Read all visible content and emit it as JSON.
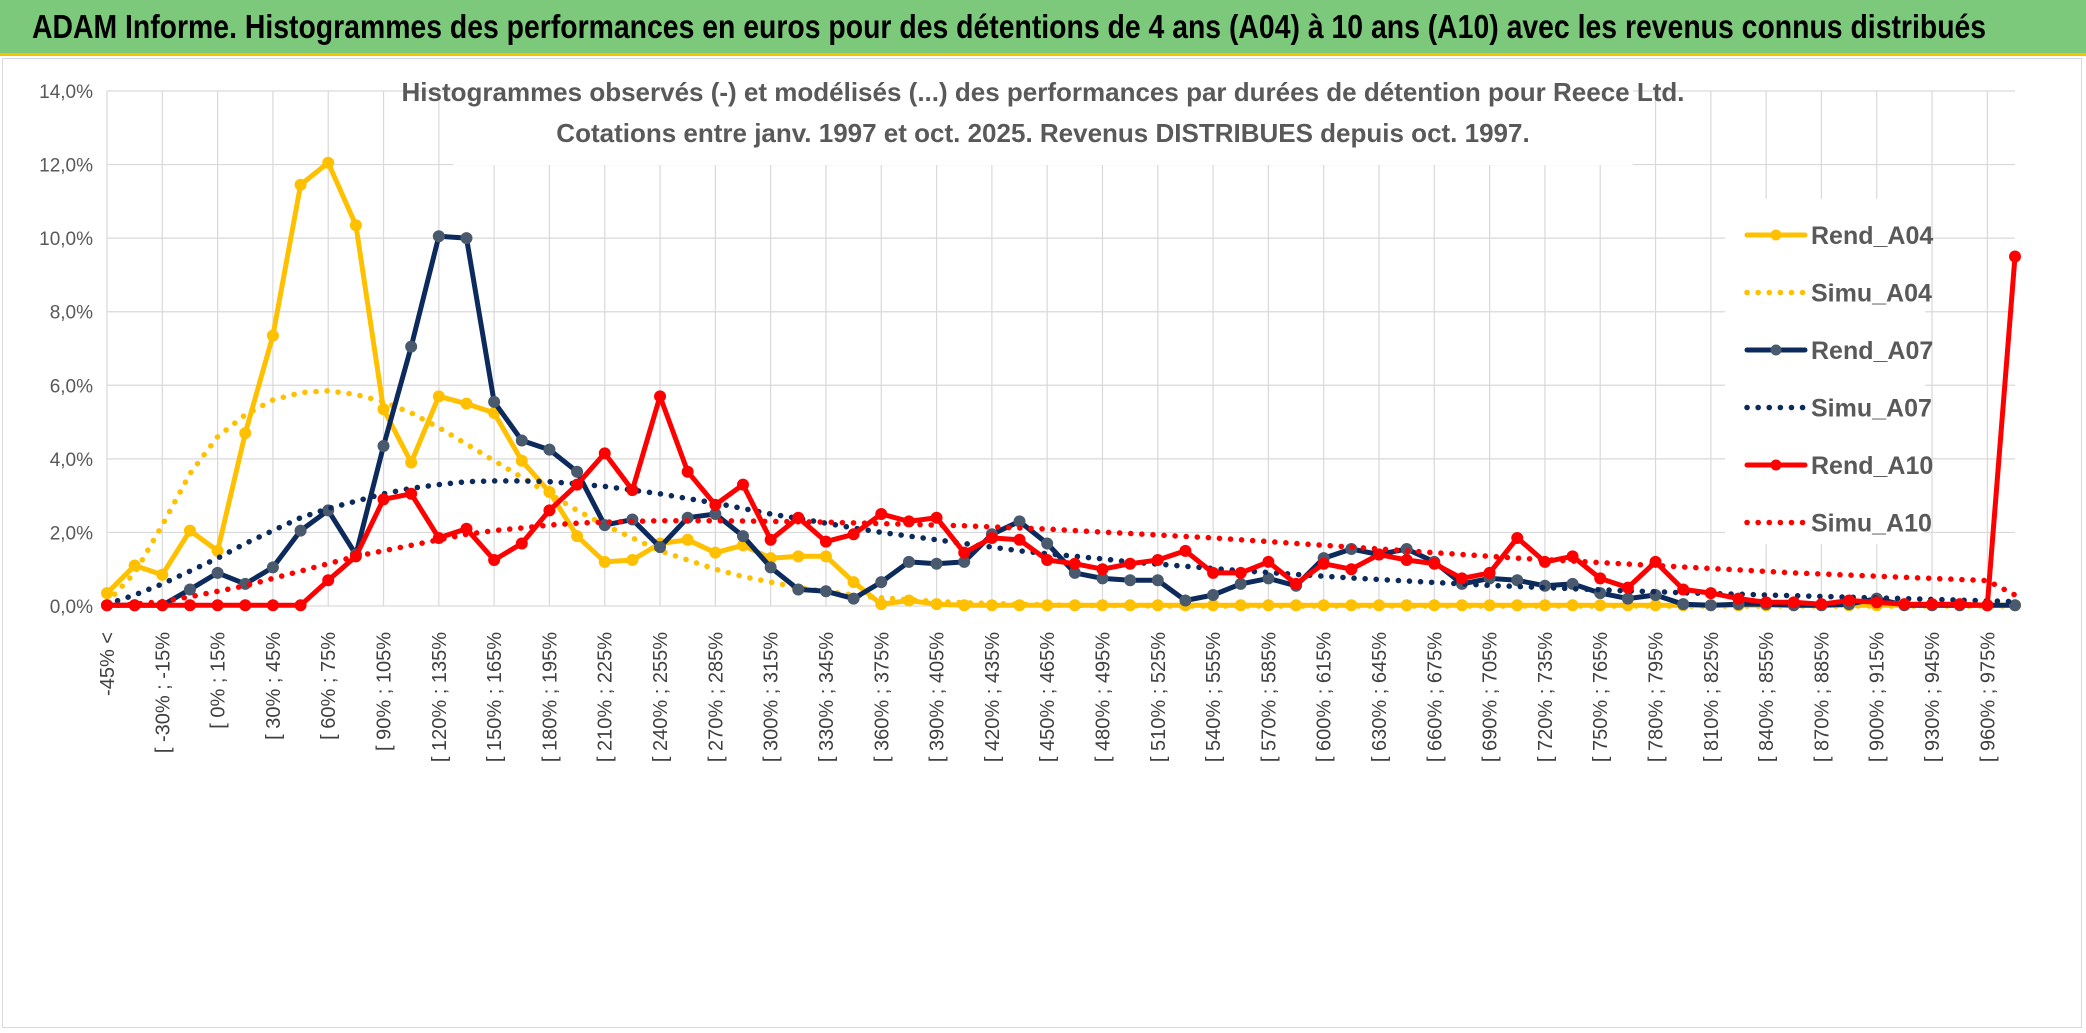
{
  "banner": {
    "title": "ADAM Informe. Histogrammes des performances en euros pour des détentions de 4 ans (A04) à 10 ans (A10) avec les revenus connus distribués"
  },
  "colors": {
    "banner_bg": "#7dc97c",
    "A04": "#ffc000",
    "A07": "#0d2a5c",
    "A07_marker": "#4a5a6e",
    "A10": "#ff0000",
    "grid": "#d9d9d9"
  },
  "chart_data": {
    "type": "line",
    "title": "Histogrammes observés (-) et modélisés (...) des performances par durées de détention pour Reece Ltd.",
    "subtitle": "Cotations entre janv. 1997 et oct. 2025. Revenus DISTRIBUES depuis oct. 1997.",
    "xlabel": "",
    "ylabel": "",
    "ylim": [
      0,
      14
    ],
    "yticks": [
      "0,0%",
      "2,0%",
      "4,0%",
      "6,0%",
      "8,0%",
      "10,0%",
      "12,0%",
      "14,0%"
    ],
    "grid": true,
    "legend_position": "right",
    "x_labels": [
      "-45% <",
      "[ -30% ; -15%",
      "[ 0% ; 15%",
      "[ 30% ; 45%",
      "[ 60% ; 75%",
      "[ 90% ; 105%",
      "[ 120% ; 135%",
      "[ 150% ; 165%",
      "[ 180% ; 195%",
      "[ 210% ; 225%",
      "[ 240% ; 255%",
      "[ 270% ; 285%",
      "[ 300% ; 315%",
      "[ 330% ; 345%",
      "[ 360% ; 375%",
      "[ 390% ; 405%",
      "[ 420% ; 435%",
      "[ 450% ; 465%",
      "[ 480% ; 495%",
      "[ 510% ; 525%",
      "[ 540% ; 555%",
      "[ 570% ; 585%",
      "[ 600% ; 615%",
      "[ 630% ; 645%",
      "[ 660% ; 675%",
      "[ 690% ; 705%",
      "[ 720% ; 735%",
      "[ 750% ; 765%",
      "[ 780% ; 795%",
      "[ 810% ; 825%",
      "[ 840% ; 855%",
      "[ 870% ; 885%",
      "[ 900% ; 915%",
      "[ 930% ; 945%",
      "[ 960% ; 975%"
    ],
    "series": [
      {
        "name": "Rend_A04",
        "style": "solid",
        "values": [
          0.35,
          1.1,
          0.85,
          2.05,
          1.5,
          4.7,
          7.35,
          11.45,
          12.05,
          10.35,
          5.35,
          3.9,
          5.7,
          5.5,
          5.25,
          3.95,
          3.1,
          1.9,
          1.2,
          1.25,
          1.7,
          1.8,
          1.45,
          1.65,
          1.3,
          1.35,
          1.35,
          0.65,
          0.05,
          0.15,
          0.05,
          0.02,
          0.02,
          0.02,
          0.02,
          0.02,
          0.02,
          0.02,
          0.02,
          0.02,
          0.02,
          0.02,
          0.02,
          0.02,
          0.02,
          0.02,
          0.02,
          0.02,
          0.02,
          0.02,
          0.02,
          0.02,
          0.02,
          0.02,
          0.02,
          0.02,
          0.02,
          0.02,
          0.02,
          0.02,
          0.02,
          0.02,
          0.02,
          0.02,
          0.02,
          0.02,
          0.02,
          0.02,
          0.02,
          0.02
        ]
      },
      {
        "name": "Simu_A04",
        "style": "dotted",
        "values": [
          0.1,
          0.9,
          2.2,
          3.6,
          4.6,
          5.2,
          5.6,
          5.8,
          5.85,
          5.75,
          5.55,
          5.25,
          4.85,
          4.4,
          3.95,
          3.5,
          3.05,
          2.6,
          2.2,
          1.85,
          1.5,
          1.25,
          1.0,
          0.8,
          0.65,
          0.5,
          0.4,
          0.3,
          0.22,
          0.17,
          0.12,
          0.09,
          0.07,
          0.05,
          0.03,
          0.02,
          0.01,
          0.01,
          0.0,
          0.0,
          0.0,
          0.0,
          0.0,
          0.0,
          0.0,
          0.0,
          0.0,
          0.0,
          0.0,
          0.0,
          0.0,
          0.0,
          0.0,
          0.0,
          0.0,
          0.0,
          0.0,
          0.0,
          0.0,
          0.0,
          0.0,
          0.0,
          0.0,
          0.0,
          0.0,
          0.0,
          0.0,
          0.0,
          0.0,
          0.0
        ]
      },
      {
        "name": "Rend_A07",
        "style": "solid",
        "values": [
          0.02,
          0.02,
          0.02,
          0.45,
          0.9,
          0.6,
          1.05,
          2.05,
          2.6,
          1.4,
          4.35,
          7.05,
          10.05,
          10.0,
          5.55,
          4.5,
          4.25,
          3.65,
          2.2,
          2.35,
          1.6,
          2.4,
          2.5,
          1.9,
          1.05,
          0.45,
          0.4,
          0.2,
          0.65,
          1.2,
          1.15,
          1.2,
          1.95,
          2.3,
          1.7,
          0.9,
          0.75,
          0.7,
          0.7,
          0.15,
          0.3,
          0.6,
          0.75,
          0.55,
          1.3,
          1.55,
          1.4,
          1.55,
          1.2,
          0.6,
          0.75,
          0.7,
          0.55,
          0.6,
          0.35,
          0.2,
          0.3,
          0.05,
          0.02,
          0.05,
          0.05,
          0.02,
          0.02,
          0.05,
          0.2,
          0.02,
          0.02,
          0.02,
          0.02,
          0.02
        ]
      },
      {
        "name": "Simu_A07",
        "style": "dotted",
        "values": [
          0.05,
          0.3,
          0.6,
          0.95,
          1.3,
          1.7,
          2.05,
          2.4,
          2.65,
          2.85,
          3.05,
          3.2,
          3.3,
          3.38,
          3.4,
          3.4,
          3.38,
          3.32,
          3.25,
          3.15,
          3.05,
          2.92,
          2.8,
          2.65,
          2.5,
          2.38,
          2.25,
          2.12,
          2.0,
          1.9,
          1.8,
          1.7,
          1.6,
          1.5,
          1.42,
          1.35,
          1.28,
          1.2,
          1.14,
          1.08,
          1.02,
          0.96,
          0.91,
          0.86,
          0.81,
          0.76,
          0.72,
          0.68,
          0.64,
          0.6,
          0.56,
          0.53,
          0.5,
          0.47,
          0.44,
          0.41,
          0.39,
          0.36,
          0.34,
          0.32,
          0.3,
          0.28,
          0.26,
          0.24,
          0.22,
          0.2,
          0.18,
          0.16,
          0.14,
          0.12
        ]
      },
      {
        "name": "Rend_A10",
        "style": "solid",
        "values": [
          0.02,
          0.02,
          0.02,
          0.02,
          0.02,
          0.02,
          0.02,
          0.02,
          0.7,
          1.35,
          2.9,
          3.05,
          1.85,
          2.1,
          1.25,
          1.7,
          2.6,
          3.3,
          4.15,
          3.15,
          5.7,
          3.65,
          2.75,
          3.3,
          1.8,
          2.4,
          1.75,
          1.95,
          2.5,
          2.3,
          2.4,
          1.45,
          1.85,
          1.8,
          1.25,
          1.15,
          1.0,
          1.15,
          1.25,
          1.5,
          0.9,
          0.9,
          1.2,
          0.6,
          1.15,
          1.0,
          1.4,
          1.25,
          1.15,
          0.75,
          0.9,
          1.85,
          1.2,
          1.35,
          0.75,
          0.5,
          1.2,
          0.45,
          0.35,
          0.2,
          0.1,
          0.1,
          0.05,
          0.15,
          0.1,
          0.05,
          0.05,
          0.05,
          0.02,
          9.5
        ]
      },
      {
        "name": "Simu_A10",
        "style": "dotted",
        "values": [
          0.0,
          0.05,
          0.12,
          0.25,
          0.4,
          0.55,
          0.75,
          0.95,
          1.15,
          1.35,
          1.5,
          1.65,
          1.8,
          1.95,
          2.05,
          2.12,
          2.2,
          2.25,
          2.28,
          2.3,
          2.32,
          2.32,
          2.32,
          2.31,
          2.3,
          2.29,
          2.28,
          2.26,
          2.24,
          2.22,
          2.2,
          2.18,
          2.15,
          2.12,
          2.09,
          2.05,
          2.01,
          1.97,
          1.93,
          1.89,
          1.85,
          1.8,
          1.75,
          1.7,
          1.65,
          1.6,
          1.55,
          1.5,
          1.45,
          1.4,
          1.35,
          1.3,
          1.26,
          1.22,
          1.18,
          1.14,
          1.1,
          1.06,
          1.02,
          0.98,
          0.94,
          0.9,
          0.87,
          0.84,
          0.81,
          0.78,
          0.75,
          0.72,
          0.69,
          0.3
        ]
      }
    ]
  }
}
